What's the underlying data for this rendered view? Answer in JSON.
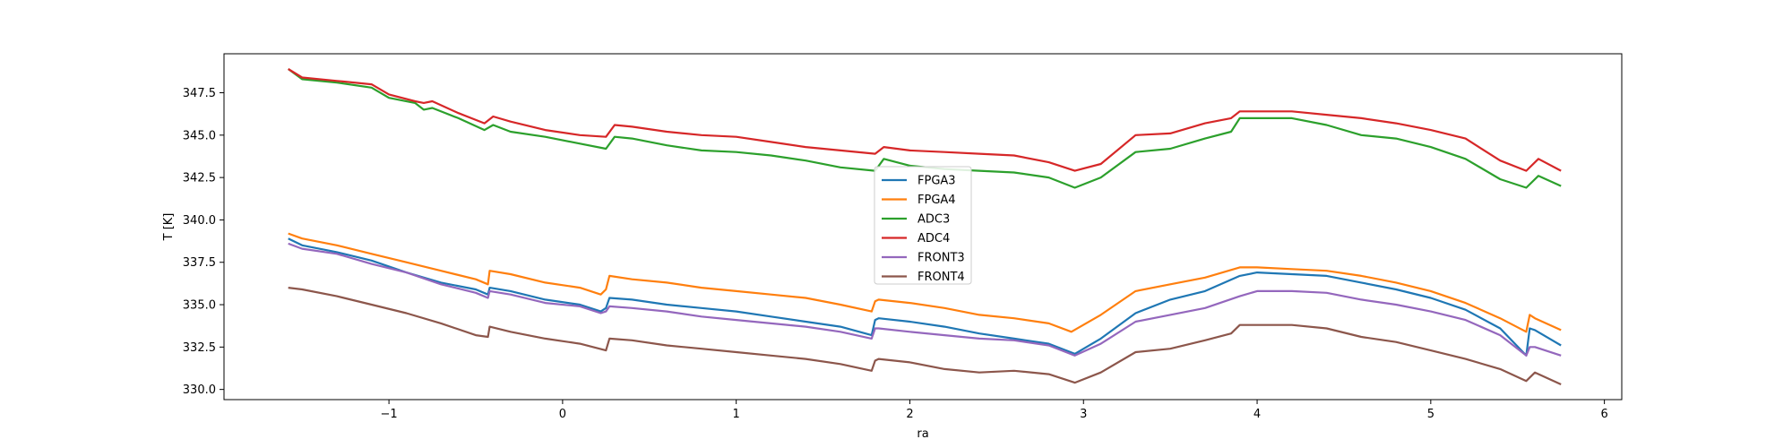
{
  "chart_data": {
    "type": "line",
    "xlabel": "ra",
    "ylabel": "T [K]",
    "xlim": [
      -1.95,
      6.1
    ],
    "ylim": [
      329.4,
      349.8
    ],
    "xticks": [
      -1,
      0,
      1,
      2,
      3,
      4,
      5,
      6
    ],
    "yticks": [
      330.0,
      332.5,
      335.0,
      337.5,
      340.0,
      342.5,
      345.0,
      347.5
    ],
    "grid": false,
    "legend_position": "center",
    "series": [
      {
        "name": "FPGA3",
        "color": "#1f77b4",
        "x": [
          -1.58,
          -1.5,
          -1.3,
          -1.1,
          -0.9,
          -0.7,
          -0.5,
          -0.43,
          -0.42,
          -0.3,
          -0.1,
          0.1,
          0.22,
          0.25,
          0.27,
          0.4,
          0.6,
          0.8,
          1.0,
          1.2,
          1.4,
          1.6,
          1.78,
          1.8,
          1.82,
          2.0,
          2.2,
          2.4,
          2.6,
          2.8,
          2.95,
          3.1,
          3.3,
          3.5,
          3.7,
          3.9,
          4.0,
          4.2,
          4.4,
          4.6,
          4.8,
          5.0,
          5.2,
          5.4,
          5.55,
          5.57,
          5.6,
          5.75
        ],
        "values": [
          338.9,
          338.5,
          338.1,
          337.6,
          336.9,
          336.3,
          335.9,
          335.6,
          336.0,
          335.8,
          335.3,
          335.0,
          334.6,
          334.8,
          335.4,
          335.3,
          335.0,
          334.8,
          334.6,
          334.3,
          334.0,
          333.7,
          333.2,
          334.1,
          334.2,
          334.0,
          333.7,
          333.3,
          333.0,
          332.7,
          332.1,
          333.0,
          334.5,
          335.3,
          335.8,
          336.7,
          336.9,
          336.8,
          336.7,
          336.3,
          335.9,
          335.4,
          334.7,
          333.6,
          332.0,
          333.6,
          333.5,
          332.6
        ]
      },
      {
        "name": "FPGA4",
        "color": "#ff7f0e",
        "x": [
          -1.58,
          -1.5,
          -1.3,
          -1.1,
          -0.9,
          -0.7,
          -0.5,
          -0.43,
          -0.42,
          -0.3,
          -0.1,
          0.1,
          0.22,
          0.25,
          0.27,
          0.4,
          0.6,
          0.8,
          1.0,
          1.2,
          1.4,
          1.6,
          1.78,
          1.8,
          1.82,
          2.0,
          2.2,
          2.4,
          2.6,
          2.8,
          2.93,
          3.1,
          3.3,
          3.5,
          3.7,
          3.9,
          4.0,
          4.2,
          4.4,
          4.6,
          4.8,
          5.0,
          5.2,
          5.4,
          5.55,
          5.57,
          5.6,
          5.75
        ],
        "values": [
          339.2,
          338.9,
          338.5,
          338.0,
          337.5,
          337.0,
          336.5,
          336.2,
          337.0,
          336.8,
          336.3,
          336.0,
          335.6,
          335.9,
          336.7,
          336.5,
          336.3,
          336.0,
          335.8,
          335.6,
          335.4,
          335.0,
          334.6,
          335.2,
          335.3,
          335.1,
          334.8,
          334.4,
          334.2,
          333.9,
          333.4,
          334.4,
          335.8,
          336.2,
          336.6,
          337.2,
          337.2,
          337.1,
          337.0,
          336.7,
          336.3,
          335.8,
          335.1,
          334.2,
          333.4,
          334.4,
          334.2,
          333.5
        ]
      },
      {
        "name": "ADC3",
        "color": "#2ca02c",
        "x": [
          -1.58,
          -1.5,
          -1.3,
          -1.1,
          -1.0,
          -0.85,
          -0.8,
          -0.75,
          -0.6,
          -0.45,
          -0.4,
          -0.3,
          -0.1,
          0.1,
          0.25,
          0.3,
          0.4,
          0.6,
          0.8,
          1.0,
          1.2,
          1.4,
          1.6,
          1.8,
          1.85,
          2.0,
          2.2,
          2.4,
          2.6,
          2.8,
          2.95,
          3.1,
          3.3,
          3.5,
          3.7,
          3.85,
          3.9,
          4.0,
          4.2,
          4.4,
          4.6,
          4.8,
          5.0,
          5.2,
          5.4,
          5.55,
          5.62,
          5.75
        ],
        "values": [
          348.9,
          348.3,
          348.1,
          347.8,
          347.2,
          346.9,
          346.5,
          346.6,
          346.0,
          345.3,
          345.6,
          345.2,
          344.9,
          344.5,
          344.2,
          344.9,
          344.8,
          344.4,
          344.1,
          344.0,
          343.8,
          343.5,
          343.1,
          342.9,
          343.6,
          343.2,
          343.0,
          342.9,
          342.8,
          342.5,
          341.9,
          342.5,
          344.0,
          344.2,
          344.8,
          345.2,
          346.0,
          346.0,
          346.0,
          345.6,
          345.0,
          344.8,
          344.3,
          343.6,
          342.4,
          341.9,
          342.6,
          342.0
        ]
      },
      {
        "name": "ADC4",
        "color": "#d62728",
        "x": [
          -1.58,
          -1.5,
          -1.3,
          -1.1,
          -1.0,
          -0.85,
          -0.8,
          -0.75,
          -0.6,
          -0.45,
          -0.4,
          -0.3,
          -0.1,
          0.1,
          0.25,
          0.3,
          0.4,
          0.6,
          0.8,
          1.0,
          1.2,
          1.4,
          1.6,
          1.8,
          1.85,
          2.0,
          2.2,
          2.4,
          2.6,
          2.8,
          2.95,
          3.1,
          3.3,
          3.5,
          3.7,
          3.85,
          3.9,
          4.0,
          4.2,
          4.4,
          4.6,
          4.8,
          5.0,
          5.2,
          5.4,
          5.55,
          5.62,
          5.75
        ],
        "values": [
          348.9,
          348.4,
          348.2,
          348.0,
          347.4,
          347.0,
          346.9,
          347.0,
          346.3,
          345.7,
          346.1,
          345.8,
          345.3,
          345.0,
          344.9,
          345.6,
          345.5,
          345.2,
          345.0,
          344.9,
          344.6,
          344.3,
          344.1,
          343.9,
          344.3,
          344.1,
          344.0,
          343.9,
          343.8,
          343.4,
          342.9,
          343.3,
          345.0,
          345.1,
          345.7,
          346.0,
          346.4,
          346.4,
          346.4,
          346.2,
          346.0,
          345.7,
          345.3,
          344.8,
          343.5,
          342.9,
          343.6,
          342.9
        ]
      },
      {
        "name": "FRONT3",
        "color": "#9467bd",
        "x": [
          -1.58,
          -1.5,
          -1.3,
          -1.1,
          -0.9,
          -0.7,
          -0.5,
          -0.43,
          -0.42,
          -0.3,
          -0.1,
          0.1,
          0.22,
          0.25,
          0.27,
          0.4,
          0.6,
          0.8,
          1.0,
          1.2,
          1.4,
          1.6,
          1.78,
          1.8,
          1.82,
          2.0,
          2.2,
          2.4,
          2.6,
          2.8,
          2.95,
          3.1,
          3.3,
          3.5,
          3.7,
          3.9,
          4.0,
          4.2,
          4.4,
          4.6,
          4.8,
          5.0,
          5.2,
          5.4,
          5.55,
          5.57,
          5.6,
          5.75
        ],
        "values": [
          338.6,
          338.3,
          338.0,
          337.4,
          336.9,
          336.2,
          335.7,
          335.4,
          335.8,
          335.6,
          335.1,
          334.9,
          334.5,
          334.6,
          334.9,
          334.8,
          334.6,
          334.3,
          334.1,
          333.9,
          333.7,
          333.4,
          333.0,
          333.6,
          333.6,
          333.4,
          333.2,
          333.0,
          332.9,
          332.6,
          332.0,
          332.7,
          334.0,
          334.4,
          334.8,
          335.5,
          335.8,
          335.8,
          335.7,
          335.3,
          335.0,
          334.6,
          334.1,
          333.2,
          332.0,
          332.5,
          332.5,
          332.0
        ]
      },
      {
        "name": "FRONT4",
        "color": "#8c564b",
        "x": [
          -1.58,
          -1.5,
          -1.3,
          -1.1,
          -0.9,
          -0.7,
          -0.5,
          -0.43,
          -0.42,
          -0.3,
          -0.1,
          0.1,
          0.25,
          0.27,
          0.4,
          0.6,
          0.8,
          1.0,
          1.2,
          1.4,
          1.6,
          1.78,
          1.8,
          1.82,
          2.0,
          2.2,
          2.4,
          2.6,
          2.8,
          2.95,
          3.1,
          3.3,
          3.5,
          3.7,
          3.85,
          3.9,
          4.0,
          4.2,
          4.4,
          4.6,
          4.8,
          5.0,
          5.2,
          5.4,
          5.55,
          5.6,
          5.75
        ],
        "values": [
          336.0,
          335.9,
          335.5,
          335.0,
          334.5,
          333.9,
          333.2,
          333.1,
          333.7,
          333.4,
          333.0,
          332.7,
          332.3,
          333.0,
          332.9,
          332.6,
          332.4,
          332.2,
          332.0,
          331.8,
          331.5,
          331.1,
          331.7,
          331.8,
          331.6,
          331.2,
          331.0,
          331.1,
          330.9,
          330.4,
          331.0,
          332.2,
          332.4,
          332.9,
          333.3,
          333.8,
          333.8,
          333.8,
          333.6,
          333.1,
          332.8,
          332.3,
          331.8,
          331.2,
          330.5,
          331.0,
          330.3
        ]
      }
    ]
  }
}
